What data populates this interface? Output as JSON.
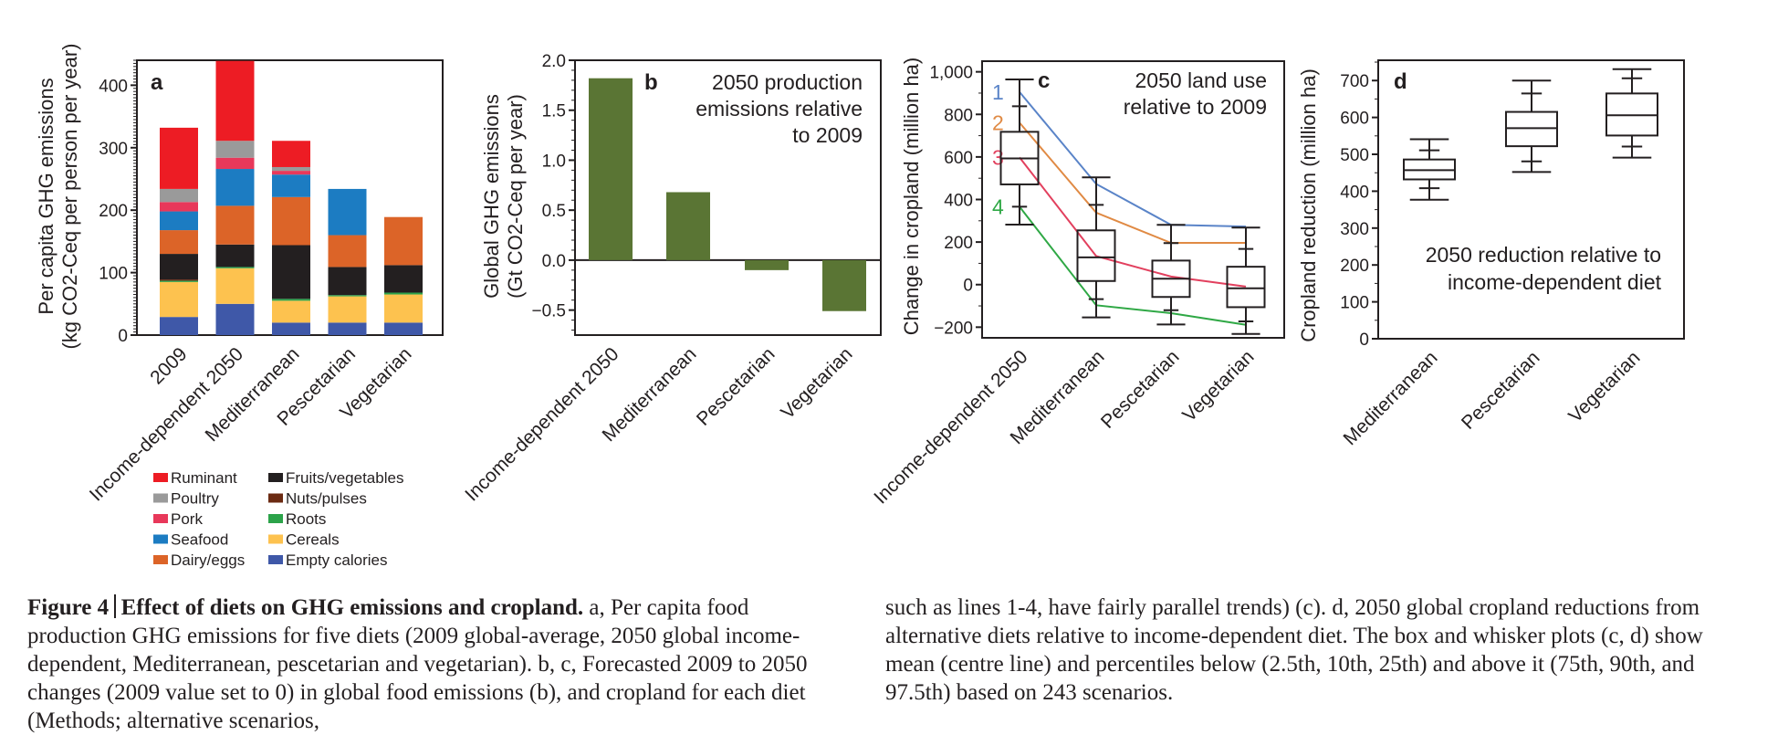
{
  "figure": {
    "caption": {
      "fig_label": "Figure 4",
      "title": "Effect of diets on GHG emissions and cropland.",
      "left_paragraph": "a, Per capita food production GHG emissions for five diets (2009 global-average, 2050 global income-dependent, Mediterranean, pescetarian and vegetarian). b, c, Forecasted 2009 to 2050 changes (2009 value set to 0) in global food emissions (b), and cropland for each diet (Methods; alternative scenarios,",
      "right_paragraph": "such as lines 1-4, have fairly parallel trends) (c). d, 2050 global cropland reductions from alternative diets relative to income-dependent diet. The box and whisker plots (c, d) show mean (centre line) and percentiles below (2.5th, 10th, 25th) and above it (75th, 90th, and 97.5th) based on 243 scenarios."
    }
  },
  "chart_data": [
    {
      "panel": "a",
      "type": "bar",
      "stacked": true,
      "title": "",
      "xlabel": "",
      "ylabel_line1": "Per capita GHG emissions",
      "ylabel_line2": "(kg CO2-Ceq per person per year)",
      "ylim": [
        0,
        440
      ],
      "yticks": [
        0,
        100,
        200,
        300,
        400
      ],
      "categories": [
        "2009",
        "Income-dependent 2050",
        "Mediterranean",
        "Pescetarian",
        "Vegetarian"
      ],
      "legend_position": "below",
      "series": [
        {
          "name": "Empty calories",
          "color": "#3f58a8",
          "values": [
            29,
            50,
            20,
            20,
            20
          ]
        },
        {
          "name": "Cereals",
          "color": "#fdc24f",
          "values": [
            56,
            57,
            35,
            42,
            45
          ]
        },
        {
          "name": "Roots",
          "color": "#2ca34a",
          "values": [
            2,
            2,
            3,
            2,
            3
          ]
        },
        {
          "name": "Nuts/pulses",
          "color": "#6b2a12",
          "values": [
            2,
            0,
            0,
            0,
            0
          ]
        },
        {
          "name": "Fruits/vegetables",
          "color": "#231f20",
          "values": [
            41,
            36,
            86,
            45,
            44
          ]
        },
        {
          "name": "Dairy/eggs",
          "color": "#dc6428",
          "values": [
            38,
            62,
            77,
            51,
            77
          ]
        },
        {
          "name": "Seafood",
          "color": "#1c7cc2",
          "values": [
            30,
            59,
            36,
            74,
            0
          ]
        },
        {
          "name": "Pork",
          "color": "#e8385a",
          "values": [
            15,
            18,
            6,
            0,
            0
          ]
        },
        {
          "name": "Poultry",
          "color": "#9a9a9a",
          "values": [
            21,
            27,
            6,
            0,
            0
          ]
        },
        {
          "name": "Ruminant",
          "color": "#ed1c24",
          "values": [
            98,
            128,
            42,
            0,
            0
          ]
        }
      ],
      "legend_columns": [
        [
          "Ruminant",
          "Poultry",
          "Pork",
          "Seafood",
          "Dairy/eggs"
        ],
        [
          "Fruits/vegetables",
          "Nuts/pulses",
          "Roots",
          "Cereals",
          "Empty calories"
        ]
      ]
    },
    {
      "panel": "b",
      "type": "bar",
      "title": "2050 production emissions relative to 2009",
      "title_lines": [
        "2050 production",
        "emissions relative",
        "to 2009"
      ],
      "xlabel": "",
      "ylabel_line1": "Global GHG emissions",
      "ylabel_line2": "(Gt CO2-Ceq per year)",
      "ylim": [
        -0.75,
        2.0
      ],
      "yticks": [
        -0.5,
        0.0,
        0.5,
        1.0,
        1.5,
        2.0
      ],
      "ytick_labels": [
        "−0.5",
        "0.0",
        "0.5",
        "1.0",
        "1.5",
        "2.0"
      ],
      "categories": [
        "Income-dependent 2050",
        "Mediterranean",
        "Pescetarian",
        "Vegetarian"
      ],
      "values": [
        1.82,
        0.68,
        -0.1,
        -0.51
      ],
      "color": "#5a7534"
    },
    {
      "panel": "c",
      "type": "boxplot",
      "title": "2050 land use relative to 2009",
      "title_lines": [
        "2050 land use",
        "relative to 2009"
      ],
      "xlabel": "",
      "ylabel": "Change in cropland (million ha)",
      "ylim": [
        -250,
        1050
      ],
      "yticks": [
        -200,
        0,
        200,
        400,
        600,
        800,
        1000
      ],
      "ytick_labels": [
        "−200",
        "0",
        "200",
        "400",
        "600",
        "800",
        "1,000"
      ],
      "categories": [
        "Income-dependent 2050",
        "Mediterranean",
        "Pescetarian",
        "Vegetarian"
      ],
      "boxes": [
        {
          "p2_5": 282,
          "p10": 366,
          "p25": 471,
          "mean": 593,
          "p75": 718,
          "p90": 838,
          "p97_5": 964
        },
        {
          "p2_5": -154,
          "p10": -68,
          "p25": 17,
          "mean": 128,
          "p75": 255,
          "p90": 375,
          "p97_5": 504
        },
        {
          "p2_5": -187,
          "p10": -120,
          "p25": -58,
          "mean": 28,
          "p75": 113,
          "p90": 195,
          "p97_5": 281
        },
        {
          "p2_5": -232,
          "p10": -173,
          "p25": -106,
          "mean": -17,
          "p75": 84,
          "p90": 168,
          "p97_5": 268
        }
      ],
      "lines": [
        {
          "name": "1",
          "color": "#5a84c8",
          "values": [
            905,
            473,
            281,
            273
          ]
        },
        {
          "name": "2",
          "color": "#e08a44",
          "values": [
            761,
            338,
            196,
            196
          ]
        },
        {
          "name": "3",
          "color": "#e2405e",
          "values": [
            598,
            134,
            38,
            -9
          ]
        },
        {
          "name": "4",
          "color": "#2fa845",
          "values": [
            366,
            -97,
            -134,
            -189
          ]
        }
      ]
    },
    {
      "panel": "d",
      "type": "boxplot",
      "title": "2050 reduction relative to income-dependent diet",
      "title_lines": [
        "2050 reduction relative to",
        "income-dependent diet"
      ],
      "xlabel": "",
      "ylabel": "Cropland reduction (million ha)",
      "ylim": [
        0,
        755
      ],
      "yticks": [
        0,
        100,
        200,
        300,
        400,
        500,
        600,
        700
      ],
      "categories": [
        "Mediterranean",
        "Pescetarian",
        "Vegetarian"
      ],
      "boxes": [
        {
          "p2_5": 377,
          "p10": 408,
          "p25": 432,
          "mean": 457,
          "p75": 486,
          "p90": 511,
          "p97_5": 541
        },
        {
          "p2_5": 452,
          "p10": 481,
          "p25": 522,
          "mean": 571,
          "p75": 615,
          "p90": 665,
          "p97_5": 700
        },
        {
          "p2_5": 491,
          "p10": 521,
          "p25": 551,
          "mean": 606,
          "p75": 665,
          "p90": 706,
          "p97_5": 731
        }
      ]
    }
  ]
}
